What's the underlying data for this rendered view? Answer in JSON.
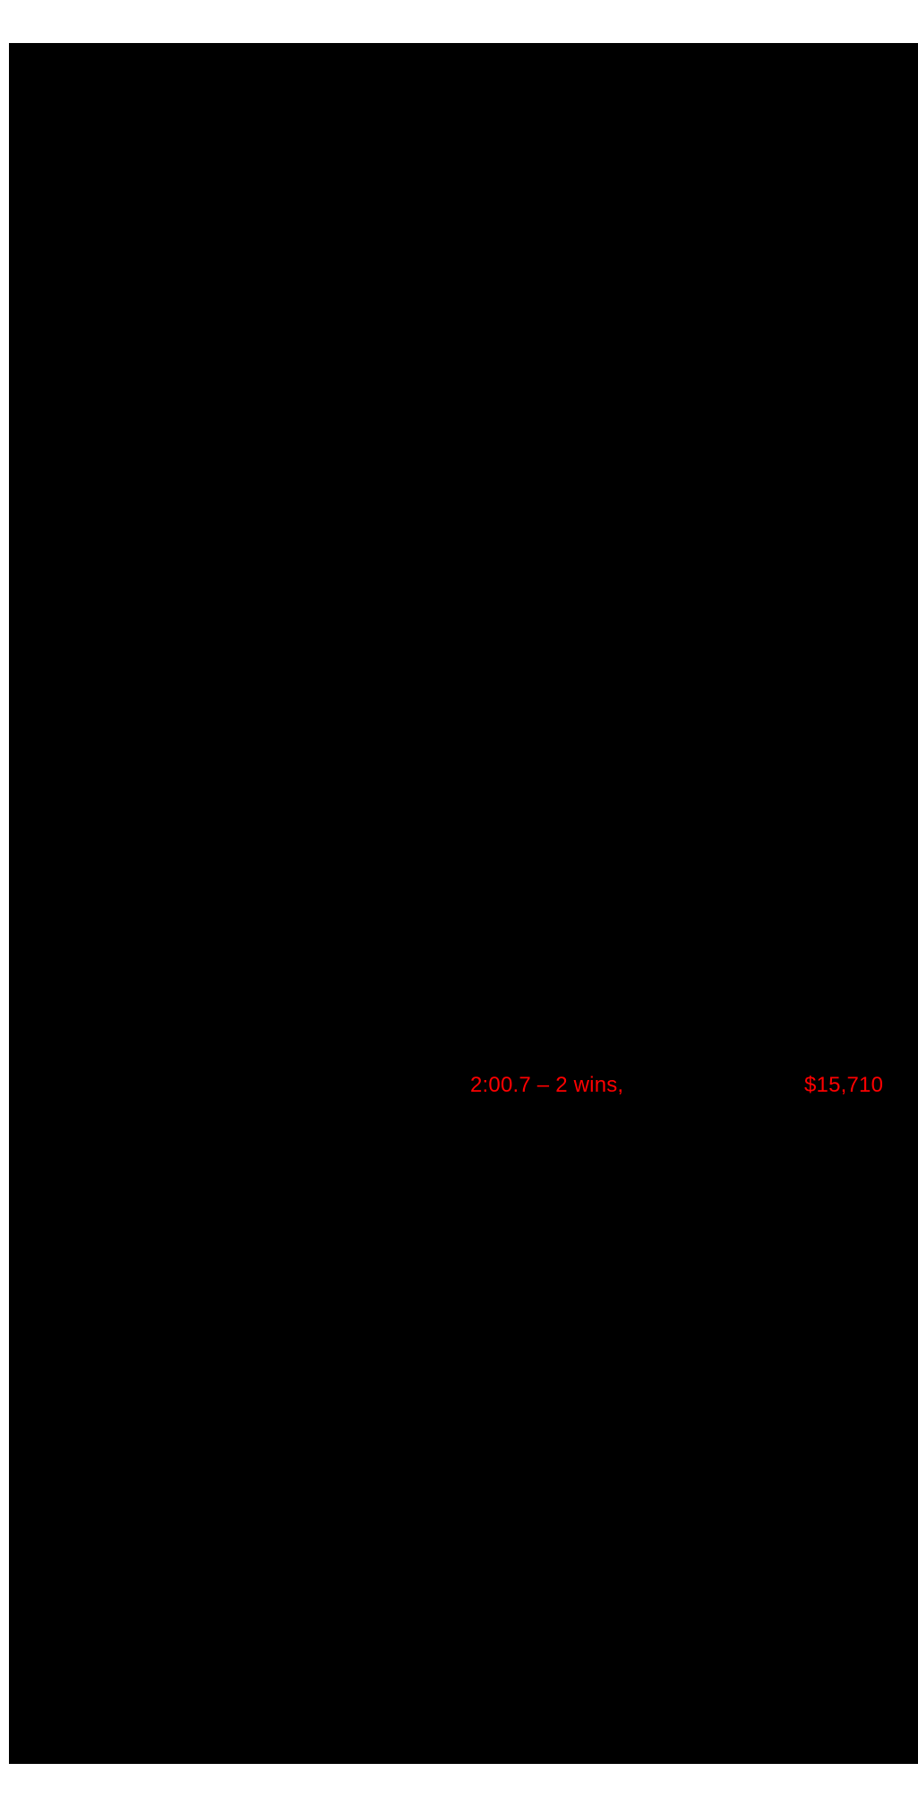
{
  "colors": {
    "red": "#ff0000",
    "page_background": "#ffffff",
    "scan_region": "#000000"
  },
  "scanned_page": {
    "race_record_fragment": "2:00.7 – 2 wins,",
    "earnings_fragment": "$15,710"
  }
}
